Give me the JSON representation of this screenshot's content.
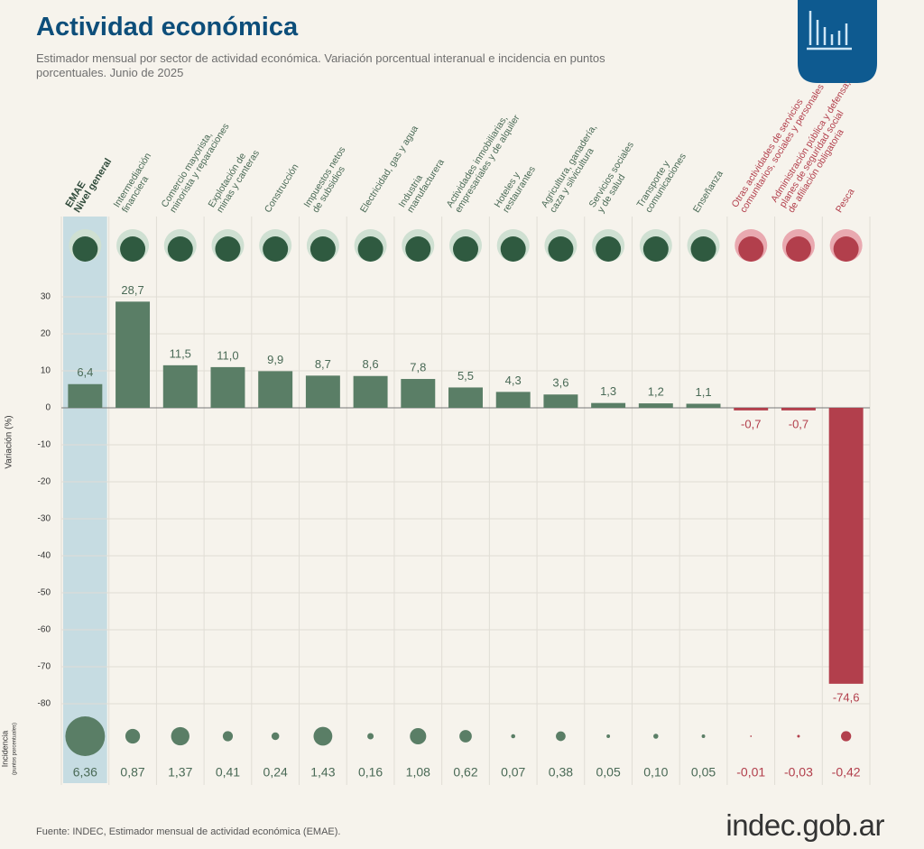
{
  "chart_data": {
    "type": "bar",
    "title": "Actividad económica",
    "subtitle": "Estimador mensual por sector de actividad económica. Variación porcentual interanual e incidencia en puntos porcentuales. Junio de 2025",
    "y_label": "Variación (%)",
    "categories": [
      "EMAE\nNivel general",
      "Intermediación\nfinanciera",
      "Comercio mayorista,\nminorista y reparaciones",
      "Explotación de\nminas y canteras",
      "Construcción",
      "Impuestos netos\nde subsidios",
      "Electricidad, gas y agua",
      "Industria\nmanufacturera",
      "Actividades inmobiliarias,\nempresariales y de alquiler",
      "Hoteles y\nrestaurantes",
      "Agricultura, ganadería,\ncaza y silvicultura",
      "Servicios sociales\ny de salud",
      "Transporte y\ncomunicaciones",
      "Enseñanza",
      "Otras actividades de servicios\ncomunitarios, sociales y personales",
      "Administración pública y defensa;\nplanes de seguridad social\nde afiliación obligatoria",
      "Pesca"
    ],
    "values": [
      6.4,
      28.7,
      11.5,
      11.0,
      9.9,
      8.7,
      8.6,
      7.8,
      5.5,
      4.3,
      3.6,
      1.3,
      1.2,
      1.1,
      -0.7,
      -0.7,
      -74.6
    ],
    "value_labels": [
      "6,4",
      "28,7",
      "11,5",
      "11,0",
      "9,9",
      "8,7",
      "8,6",
      "7,8",
      "5,5",
      "4,3",
      "3,6",
      "1,3",
      "1,2",
      "1,1",
      "-0,7",
      "-0,7",
      "-74,6"
    ],
    "color": "#5a7e66",
    "negative_color": "#b23f4c",
    "ylim": [
      -85,
      35
    ],
    "yticks": [
      30,
      20,
      10,
      0,
      -10,
      -20,
      -30,
      -40,
      -50,
      -60,
      -70,
      -80
    ],
    "grid": true,
    "incidence": {
      "label": "Incidencia",
      "sublabel": "(puntos porcentuales)",
      "values": [
        6.36,
        0.87,
        1.37,
        0.41,
        0.24,
        1.43,
        0.16,
        1.08,
        0.62,
        0.07,
        0.38,
        0.05,
        0.1,
        0.05,
        -0.01,
        -0.03,
        -0.42
      ],
      "value_labels": [
        "6,36",
        "0,87",
        "1,37",
        "0,41",
        "0,24",
        "1,43",
        "0,16",
        "1,08",
        "0,62",
        "0,07",
        "0,38",
        "0,05",
        "0,10",
        "0,05",
        "-0,01",
        "-0,03",
        "-0,42"
      ]
    },
    "source": "Fuente: INDEC, Estimador mensual de actividad económica (EMAE).",
    "logo": "indec.gob.ar"
  }
}
